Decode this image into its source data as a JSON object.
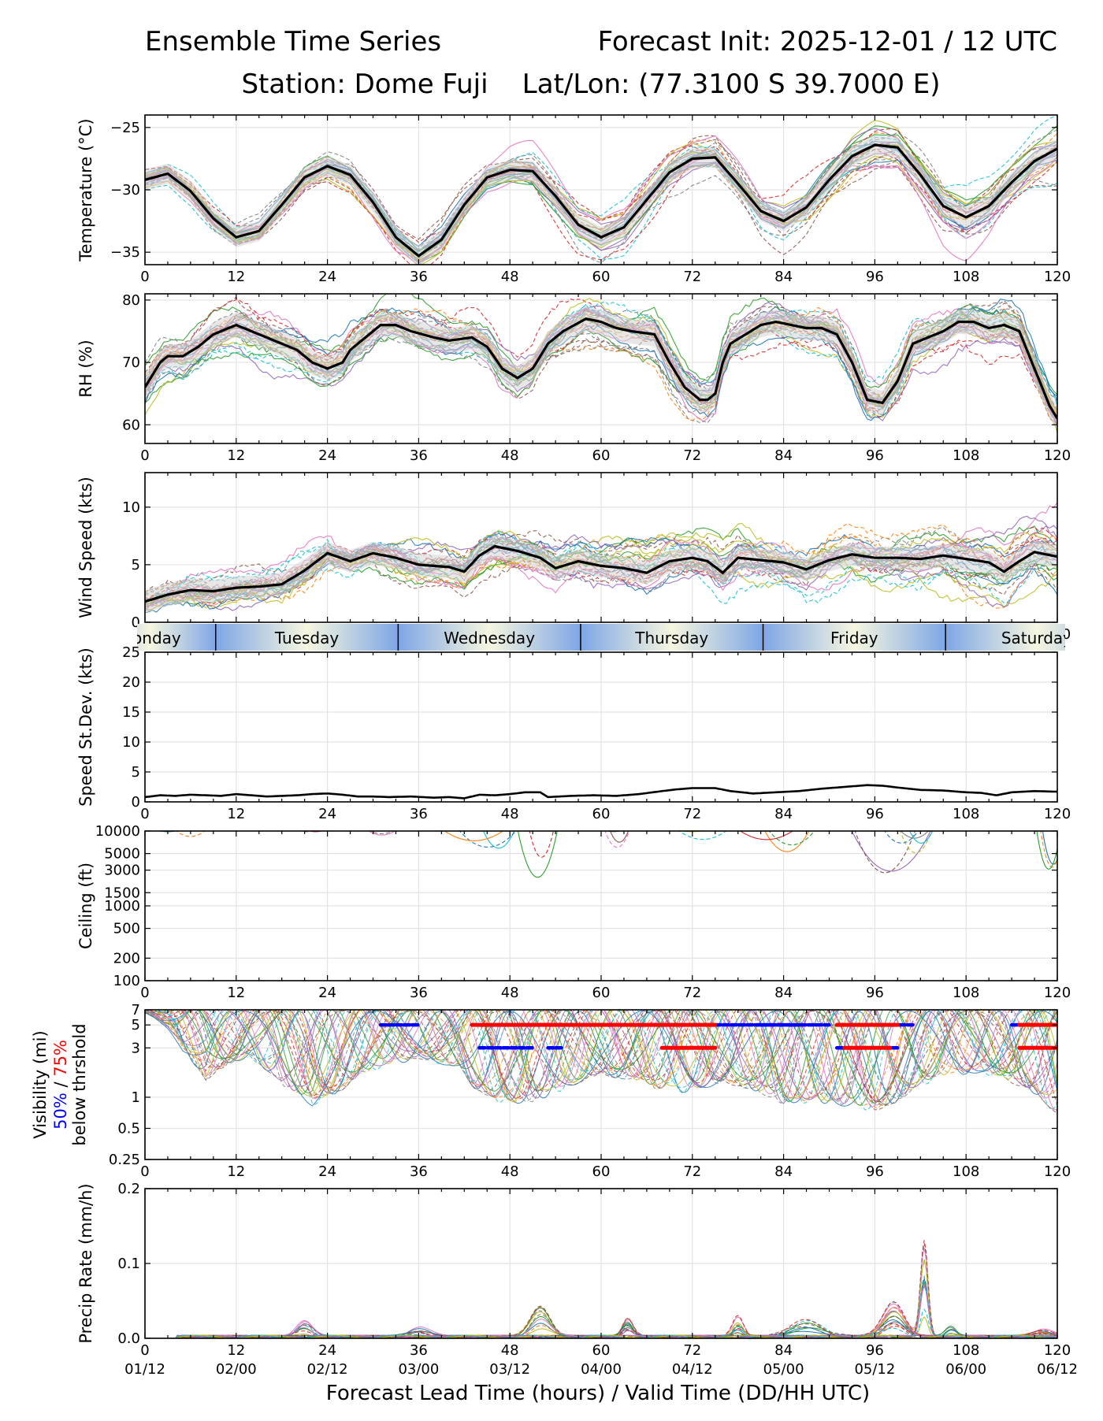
{
  "header": {
    "title_left": "Ensemble Time Series",
    "title_right": "Forecast Init: 2025-12-01 / 12 UTC",
    "subtitle": "Station: Dome Fuji    Lat/Lon: (77.3100 S 39.7000 E)"
  },
  "colors": {
    "mean": "#000000",
    "spread": "#d3d3d3",
    "grid": "#e3e3e3",
    "vis50": "#0000ff",
    "vis75": "#ff0000",
    "day_dark": "#7ea6e6",
    "day_light": "#f6f6df",
    "members": [
      "#1f77b4",
      "#ff7f0e",
      "#2ca02c",
      "#d62728",
      "#9467bd",
      "#8c564b",
      "#e377c2",
      "#7f7f7f",
      "#bcbd22",
      "#17becf"
    ]
  },
  "x_axis": {
    "xlim": [
      0,
      120
    ],
    "lead_ticks": [
      "0",
      "12",
      "24",
      "36",
      "48",
      "60",
      "72",
      "84",
      "96",
      "108",
      "120"
    ],
    "valid_ticks": [
      "01/12",
      "02/00",
      "02/12",
      "03/00",
      "03/12",
      "04/00",
      "04/12",
      "05/00",
      "05/12",
      "06/00",
      "06/12"
    ],
    "xlabel": "Forecast Lead Time (hours) / Valid Time (DD/HH UTC)"
  },
  "day_strip": {
    "days": [
      {
        "name": "Monday",
        "start": -8,
        "end": 9.3
      },
      {
        "name": "Tuesday",
        "start": 9.3,
        "end": 33.3
      },
      {
        "name": "Wednesday",
        "start": 33.3,
        "end": 57.3
      },
      {
        "name": "Thursday",
        "start": 57.3,
        "end": 81.3
      },
      {
        "name": "Friday",
        "start": 81.3,
        "end": 105.3
      },
      {
        "name": "Saturday",
        "start": 105.3,
        "end": 129.3
      }
    ]
  },
  "chart_data": [
    {
      "type": "line",
      "id": "temperature",
      "ylabel": "Temperature (°C)",
      "ylim": [
        -36,
        -24
      ],
      "yticks": [
        -35,
        -30,
        -25
      ],
      "ytick_labels": [
        "−35",
        "−30",
        "−25"
      ],
      "members": 30,
      "spread": 0.9,
      "mean": [
        [
          0,
          -29.2
        ],
        [
          3,
          -28.7
        ],
        [
          6,
          -30.1
        ],
        [
          9,
          -32.3
        ],
        [
          12,
          -33.8
        ],
        [
          15,
          -33.3
        ],
        [
          18,
          -31.2
        ],
        [
          21,
          -29.0
        ],
        [
          24,
          -28.1
        ],
        [
          27,
          -28.8
        ],
        [
          30,
          -31.0
        ],
        [
          33,
          -33.8
        ],
        [
          36,
          -35.3
        ],
        [
          39,
          -34.0
        ],
        [
          42,
          -31.2
        ],
        [
          45,
          -29.0
        ],
        [
          48,
          -28.4
        ],
        [
          51,
          -28.5
        ],
        [
          54,
          -30.5
        ],
        [
          57,
          -32.8
        ],
        [
          60,
          -33.8
        ],
        [
          63,
          -33.0
        ],
        [
          66,
          -30.8
        ],
        [
          69,
          -28.6
        ],
        [
          72,
          -27.5
        ],
        [
          75,
          -27.4
        ],
        [
          78,
          -29.5
        ],
        [
          81,
          -31.7
        ],
        [
          84,
          -32.5
        ],
        [
          87,
          -31.4
        ],
        [
          90,
          -29.2
        ],
        [
          93,
          -27.3
        ],
        [
          96,
          -26.4
        ],
        [
          99,
          -26.6
        ],
        [
          102,
          -28.8
        ],
        [
          105,
          -31.3
        ],
        [
          108,
          -32.2
        ],
        [
          111,
          -31.3
        ],
        [
          114,
          -29.4
        ],
        [
          117,
          -27.7
        ],
        [
          120,
          -26.7
        ]
      ]
    },
    {
      "type": "line",
      "id": "rh",
      "ylabel": "RH (%)",
      "ylim": [
        57,
        81
      ],
      "yticks": [
        60,
        70,
        80
      ],
      "ytick_labels": [
        "60",
        "70",
        "80"
      ],
      "members": 30,
      "spread": 2.2,
      "mean": [
        [
          0,
          66
        ],
        [
          1,
          68
        ],
        [
          2,
          70
        ],
        [
          3,
          71
        ],
        [
          5,
          71
        ],
        [
          7,
          72.5
        ],
        [
          9,
          74.5
        ],
        [
          12,
          76
        ],
        [
          15,
          74.5
        ],
        [
          18,
          73
        ],
        [
          20,
          72
        ],
        [
          22,
          70
        ],
        [
          24,
          69
        ],
        [
          26,
          70
        ],
        [
          27,
          72
        ],
        [
          29,
          74
        ],
        [
          31,
          76
        ],
        [
          33,
          76
        ],
        [
          35,
          75
        ],
        [
          38,
          74
        ],
        [
          40,
          73.5
        ],
        [
          43,
          74
        ],
        [
          45,
          72.5
        ],
        [
          47,
          69
        ],
        [
          49,
          67.5
        ],
        [
          51,
          69
        ],
        [
          53,
          73
        ],
        [
          55,
          75
        ],
        [
          58,
          77
        ],
        [
          60,
          76.5
        ],
        [
          62,
          75.5
        ],
        [
          64,
          75
        ],
        [
          67,
          74.5
        ],
        [
          69,
          70
        ],
        [
          71,
          66
        ],
        [
          73,
          64
        ],
        [
          74,
          64
        ],
        [
          75,
          65
        ],
        [
          76,
          70
        ],
        [
          77,
          73
        ],
        [
          79,
          74.5
        ],
        [
          81,
          76
        ],
        [
          83,
          76.5
        ],
        [
          85,
          76
        ],
        [
          87,
          75.5
        ],
        [
          89,
          75.5
        ],
        [
          91,
          74.5
        ],
        [
          93,
          70
        ],
        [
          95,
          64
        ],
        [
          97,
          63.5
        ],
        [
          99,
          67
        ],
        [
          101,
          73
        ],
        [
          103,
          74
        ],
        [
          105,
          75
        ],
        [
          107,
          76.5
        ],
        [
          109,
          76.5
        ],
        [
          111,
          75.5
        ],
        [
          113,
          76
        ],
        [
          115,
          75
        ],
        [
          117,
          69
        ],
        [
          119,
          63
        ],
        [
          120,
          61
        ]
      ]
    },
    {
      "type": "line",
      "id": "wind_speed",
      "ylabel": "Wind Speed (kts)",
      "ylim": [
        0,
        13
      ],
      "yticks": [
        0,
        5,
        10
      ],
      "ytick_labels": [
        "0",
        "5",
        "10"
      ],
      "members": 30,
      "spread": 1.1,
      "mean": [
        [
          0,
          1.8
        ],
        [
          3,
          2.4
        ],
        [
          6,
          2.8
        ],
        [
          9,
          2.7
        ],
        [
          12,
          3.0
        ],
        [
          15,
          3.1
        ],
        [
          18,
          3.3
        ],
        [
          21,
          4.5
        ],
        [
          24,
          6.0
        ],
        [
          27,
          5.3
        ],
        [
          30,
          6.0
        ],
        [
          33,
          5.6
        ],
        [
          36,
          5.0
        ],
        [
          40,
          4.8
        ],
        [
          42,
          4.4
        ],
        [
          44,
          5.8
        ],
        [
          46,
          6.6
        ],
        [
          49,
          6.2
        ],
        [
          52,
          5.6
        ],
        [
          54,
          4.7
        ],
        [
          57,
          5.3
        ],
        [
          60,
          4.9
        ],
        [
          63,
          4.7
        ],
        [
          66,
          4.3
        ],
        [
          69,
          5.3
        ],
        [
          72,
          5.6
        ],
        [
          74,
          5.3
        ],
        [
          76,
          4.3
        ],
        [
          78,
          5.6
        ],
        [
          81,
          5.4
        ],
        [
          84,
          5.2
        ],
        [
          87,
          4.6
        ],
        [
          90,
          5.4
        ],
        [
          93,
          5.9
        ],
        [
          96,
          5.6
        ],
        [
          99,
          5.6
        ],
        [
          102,
          5.5
        ],
        [
          105,
          5.8
        ],
        [
          108,
          5.5
        ],
        [
          111,
          5.2
        ],
        [
          113,
          4.4
        ],
        [
          115,
          5.3
        ],
        [
          117,
          6.1
        ],
        [
          120,
          5.7
        ]
      ]
    },
    {
      "type": "line",
      "id": "speed_stdev",
      "ylabel": "Speed St.Dev. (kts)",
      "ylim": [
        0,
        25
      ],
      "yticks": [
        0,
        5,
        10,
        15,
        20,
        25
      ],
      "ytick_labels": [
        "0",
        "5",
        "10",
        "15",
        "20",
        "25"
      ],
      "values": [
        [
          0,
          0.8
        ],
        [
          2,
          1.1
        ],
        [
          4,
          1.0
        ],
        [
          6,
          1.2
        ],
        [
          8,
          1.1
        ],
        [
          10,
          1.0
        ],
        [
          12,
          1.3
        ],
        [
          14,
          1.1
        ],
        [
          16,
          0.9
        ],
        [
          18,
          1.0
        ],
        [
          20,
          1.1
        ],
        [
          22,
          1.3
        ],
        [
          24,
          1.4
        ],
        [
          26,
          1.2
        ],
        [
          28,
          0.9
        ],
        [
          30,
          0.9
        ],
        [
          32,
          0.8
        ],
        [
          35,
          0.9
        ],
        [
          38,
          0.7
        ],
        [
          40,
          0.8
        ],
        [
          42,
          0.6
        ],
        [
          44,
          1.2
        ],
        [
          46,
          1.1
        ],
        [
          48,
          1.3
        ],
        [
          50,
          1.6
        ],
        [
          52,
          1.6
        ],
        [
          53,
          0.8
        ],
        [
          56,
          1.0
        ],
        [
          59,
          1.1
        ],
        [
          62,
          1.0
        ],
        [
          65,
          1.3
        ],
        [
          68,
          1.8
        ],
        [
          70,
          2.1
        ],
        [
          72,
          2.3
        ],
        [
          75,
          2.3
        ],
        [
          77,
          1.8
        ],
        [
          80,
          1.4
        ],
        [
          83,
          1.6
        ],
        [
          86,
          1.8
        ],
        [
          89,
          2.2
        ],
        [
          92,
          2.5
        ],
        [
          95,
          2.8
        ],
        [
          97,
          2.7
        ],
        [
          99,
          2.4
        ],
        [
          102,
          2.0
        ],
        [
          105,
          1.9
        ],
        [
          108,
          1.6
        ],
        [
          110,
          1.5
        ],
        [
          112,
          1.1
        ],
        [
          114,
          1.6
        ],
        [
          117,
          1.8
        ],
        [
          120,
          1.7
        ]
      ]
    },
    {
      "type": "line",
      "id": "ceiling",
      "ylabel": "Ceiling (ft)",
      "yscale": "log",
      "ylim": [
        100,
        10000
      ],
      "yticks": [
        100,
        200,
        500,
        1000,
        1500,
        3000,
        5000,
        10000
      ],
      "ytick_labels": [
        "100",
        "200",
        "500",
        "1000",
        "1500",
        "3000",
        "5000",
        "10000"
      ],
      "dips": [
        [
          5,
          4,
          7500
        ],
        [
          22.5,
          2,
          9000
        ],
        [
          32,
          2.5,
          8500
        ],
        [
          44,
          5,
          5000
        ],
        [
          52,
          4,
          2500
        ],
        [
          63,
          3,
          6000
        ],
        [
          73,
          4,
          8000
        ],
        [
          84,
          5,
          4500
        ],
        [
          96,
          6,
          2500
        ],
        [
          101,
          3,
          4000
        ],
        [
          119.5,
          2,
          2800
        ]
      ]
    },
    {
      "type": "line",
      "id": "visibility",
      "ylabel_lines": [
        "Visibility (mi)",
        "50%",
        " / ",
        "75%",
        "below thrshold"
      ],
      "yscale": "log",
      "ylim": [
        0.25,
        7
      ],
      "yticks": [
        0.25,
        0.5,
        1,
        3,
        5,
        7
      ],
      "ytick_labels": [
        "0.25",
        "0.5",
        "1",
        "3",
        "5",
        "7"
      ],
      "band_low": [
        [
          0,
          7
        ],
        [
          3,
          5
        ],
        [
          5,
          3
        ],
        [
          8,
          1.6
        ],
        [
          11,
          2.2
        ],
        [
          14,
          2.6
        ],
        [
          18,
          1.4
        ],
        [
          22,
          0.9
        ],
        [
          26,
          1.3
        ],
        [
          30,
          2.0
        ],
        [
          33,
          2.3
        ],
        [
          36,
          2.6
        ],
        [
          40,
          2.2
        ],
        [
          43,
          1.4
        ],
        [
          46,
          1.0
        ],
        [
          50,
          0.9
        ],
        [
          54,
          1.2
        ],
        [
          57,
          1.5
        ],
        [
          60,
          1.8
        ],
        [
          64,
          1.6
        ],
        [
          67,
          1.3
        ],
        [
          70,
          1.2
        ],
        [
          73,
          1.3
        ],
        [
          76,
          1.5
        ],
        [
          80,
          1.3
        ],
        [
          84,
          0.9
        ],
        [
          88,
          1.0
        ],
        [
          92,
          0.9
        ],
        [
          96,
          0.8
        ],
        [
          99,
          1.0
        ],
        [
          102,
          1.4
        ],
        [
          106,
          1.8
        ],
        [
          110,
          1.9
        ],
        [
          114,
          1.5
        ],
        [
          117,
          1.2
        ],
        [
          120,
          0.7
        ]
      ],
      "threshold_segments": [
        {
          "level": "50%",
          "y": 5,
          "start": 31,
          "end": 36
        },
        {
          "level": "50%",
          "y": 5,
          "start": 46,
          "end": 86
        },
        {
          "level": "50%",
          "y": 5,
          "start": 81,
          "end": 90
        },
        {
          "level": "50%",
          "y": 5,
          "start": 93,
          "end": 101
        },
        {
          "level": "50%",
          "y": 5,
          "start": 114,
          "end": 117
        },
        {
          "level": "50%",
          "y": 3,
          "start": 44,
          "end": 51
        },
        {
          "level": "50%",
          "y": 3,
          "start": 53,
          "end": 55
        },
        {
          "level": "50%",
          "y": 3,
          "start": 91,
          "end": 99
        },
        {
          "level": "75%",
          "y": 5,
          "start": 43,
          "end": 75
        },
        {
          "level": "75%",
          "y": 5,
          "start": 91,
          "end": 99
        },
        {
          "level": "75%",
          "y": 5,
          "start": 115,
          "end": 120
        },
        {
          "level": "75%",
          "y": 3,
          "start": 68,
          "end": 75
        },
        {
          "level": "75%",
          "y": 3,
          "start": 92,
          "end": 98
        },
        {
          "level": "75%",
          "y": 3,
          "start": 115,
          "end": 120
        }
      ]
    },
    {
      "type": "line",
      "id": "precip",
      "ylabel": "Precip Rate (mm/h)",
      "ylim": [
        0,
        0.2
      ],
      "yticks": [
        0,
        0.1,
        0.2
      ],
      "ytick_labels": [
        "0.0",
        "0.1",
        "0.2"
      ],
      "bumps": [
        [
          21,
          1.5,
          0.022
        ],
        [
          36,
          2,
          0.015
        ],
        [
          52,
          1.8,
          0.045
        ],
        [
          63.5,
          1,
          0.025
        ],
        [
          78,
          1,
          0.025
        ],
        [
          87,
          3,
          0.02
        ],
        [
          98.5,
          2,
          0.045
        ],
        [
          102.5,
          0.7,
          0.13
        ],
        [
          106,
          1,
          0.015
        ],
        [
          118,
          2,
          0.01
        ]
      ]
    }
  ]
}
